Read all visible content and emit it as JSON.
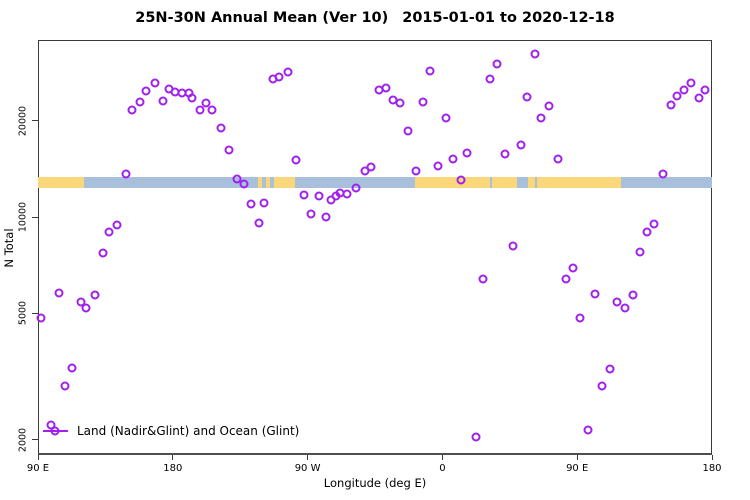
{
  "title": {
    "left": "25N-30N Annual Mean (Ver 10)",
    "right": "2015-01-01 to 2020-12-18"
  },
  "axes": {
    "x_label": "Longitude (deg E)",
    "y_label": "N Total"
  },
  "legend": {
    "label": "Land (Nadir&Glint) and Ocean (Glint)"
  },
  "colors": {
    "point": "#A020F0",
    "land": "#FBD77B",
    "ocean": "#A9C0DC",
    "axis": "#3a3a3a",
    "text": "#000000"
  },
  "chart_data": {
    "type": "scatter",
    "title": "25N-30N Annual Mean (Ver 10)   2015-01-01 to 2020-12-18",
    "xlabel": "Longitude (deg E)",
    "ylabel": "N Total",
    "x_axis": {
      "description": "degrees eastward along axis starting at 90E; axis wraps 90E>180>90W>0>90E>180",
      "span": [
        0,
        450
      ],
      "ticks": [
        {
          "deg": 0,
          "label": "90 E"
        },
        {
          "deg": 90,
          "label": "180"
        },
        {
          "deg": 180,
          "label": "90 W"
        },
        {
          "deg": 270,
          "label": "0"
        },
        {
          "deg": 360,
          "label": "90 E"
        },
        {
          "deg": 450,
          "label": "180"
        }
      ]
    },
    "y_axis": {
      "scale": "log",
      "lim": [
        1794,
        35890
      ],
      "ticks": [
        {
          "value": 2000,
          "label": "2000"
        },
        {
          "value": 5000,
          "label": "5000"
        },
        {
          "value": 10000,
          "label": "10000"
        },
        {
          "value": 20000,
          "label": "20000"
        }
      ]
    },
    "points": [
      [
        63,
        21650
      ],
      [
        67.9,
        22990
      ],
      [
        72.3,
        24890
      ],
      [
        77.9,
        26250
      ],
      [
        83.5,
        23100
      ],
      [
        87.3,
        25150
      ],
      [
        91.7,
        24700
      ],
      [
        96.1,
        24560
      ],
      [
        100.6,
        24420
      ],
      [
        102.8,
        23560
      ],
      [
        108,
        21620
      ],
      [
        112,
        22850
      ],
      [
        116.2,
        21620
      ],
      [
        122,
        19050
      ],
      [
        127.3,
        16220
      ],
      [
        58.6,
        13610
      ],
      [
        132.9,
        13130
      ],
      [
        137.5,
        12690
      ],
      [
        142.4,
        10960
      ],
      [
        150.9,
        11040
      ],
      [
        156.9,
        27020
      ],
      [
        160.9,
        27420
      ],
      [
        166.9,
        28420
      ],
      [
        227.5,
        24930
      ],
      [
        232.1,
        25430
      ],
      [
        237,
        23270
      ],
      [
        241.9,
        22820
      ],
      [
        261.9,
        28690
      ],
      [
        257,
        22990
      ],
      [
        272.2,
        20390
      ],
      [
        247,
        18600
      ],
      [
        172.5,
        15090
      ],
      [
        222.5,
        14380
      ],
      [
        218.1,
        13940
      ],
      [
        252.6,
        13920
      ],
      [
        267.1,
        14400
      ],
      [
        277.1,
        15170
      ],
      [
        286.4,
        15840
      ],
      [
        282.6,
        13100
      ],
      [
        212.1,
        12360
      ],
      [
        206.3,
        11780
      ],
      [
        201.8,
        11930
      ],
      [
        198.8,
        11660
      ],
      [
        195.8,
        11310
      ],
      [
        187.6,
        11600
      ],
      [
        177.4,
        11690
      ],
      [
        182.5,
        10200
      ],
      [
        192.1,
        9980
      ],
      [
        147.6,
        9580
      ],
      [
        301.8,
        27000
      ],
      [
        306.7,
        30110
      ],
      [
        331.8,
        32430
      ],
      [
        326.7,
        23830
      ],
      [
        341.4,
        22330
      ],
      [
        335.6,
        20490
      ],
      [
        322.5,
        16820
      ],
      [
        312,
        15800
      ],
      [
        347.2,
        15170
      ],
      [
        417.3,
        13640
      ],
      [
        422.6,
        22400
      ],
      [
        426.6,
        23900
      ],
      [
        431.3,
        24930
      ],
      [
        436,
        26300
      ],
      [
        441.3,
        23600
      ],
      [
        445.3,
        24930
      ],
      [
        52.7,
        9440
      ],
      [
        47.2,
        8990
      ],
      [
        43.4,
        7730
      ],
      [
        13.8,
        5765
      ],
      [
        28.5,
        5425
      ],
      [
        32.2,
        5175
      ],
      [
        38.3,
        5700
      ],
      [
        2,
        4825
      ],
      [
        22.9,
        3355
      ],
      [
        18.2,
        2953
      ],
      [
        8.5,
        2230
      ],
      [
        292.6,
        2048
      ],
      [
        317.1,
        8110
      ],
      [
        297.4,
        6380
      ],
      [
        357,
        6905
      ],
      [
        352.5,
        6385
      ],
      [
        372.1,
        5740
      ],
      [
        386.6,
        5405
      ],
      [
        391.7,
        5175
      ],
      [
        397,
        5700
      ],
      [
        361.7,
        4830
      ],
      [
        406.6,
        8990
      ],
      [
        411.5,
        9480
      ],
      [
        402.1,
        7750
      ],
      [
        381.7,
        3330
      ],
      [
        376.5,
        2960
      ],
      [
        367,
        2155
      ]
    ],
    "map_band": {
      "description": "land/ocean strip at 25N-30N drawn across the plot",
      "value_top": 13350,
      "value_bottom": 12330,
      "segments": [
        {
          "surface": "land",
          "from": 0,
          "to": 30.5
        },
        {
          "surface": "ocean",
          "from": 30.5,
          "to": 147
        },
        {
          "surface": "land",
          "from": 147,
          "to": 149.5
        },
        {
          "surface": "ocean",
          "from": 149.5,
          "to": 152.5
        },
        {
          "surface": "land",
          "from": 152.5,
          "to": 155
        },
        {
          "surface": "ocean",
          "from": 155,
          "to": 157.5
        },
        {
          "surface": "land",
          "from": 157.5,
          "to": 171.5
        },
        {
          "surface": "ocean",
          "from": 171.5,
          "to": 251.5
        },
        {
          "surface": "land",
          "from": 251.5,
          "to": 301.5
        },
        {
          "surface": "ocean",
          "from": 301.5,
          "to": 303
        },
        {
          "surface": "land",
          "from": 303,
          "to": 319.7
        },
        {
          "surface": "ocean",
          "from": 319.7,
          "to": 327
        },
        {
          "surface": "land",
          "from": 327,
          "to": 331.5
        },
        {
          "surface": "ocean",
          "from": 331.5,
          "to": 333.2
        },
        {
          "surface": "land",
          "from": 333.2,
          "to": 389
        },
        {
          "surface": "ocean",
          "from": 389,
          "to": 450
        }
      ]
    },
    "legend": "Land (Nadir&Glint) and Ocean (Glint)",
    "grid": false,
    "legend_position": "bottom-left"
  }
}
